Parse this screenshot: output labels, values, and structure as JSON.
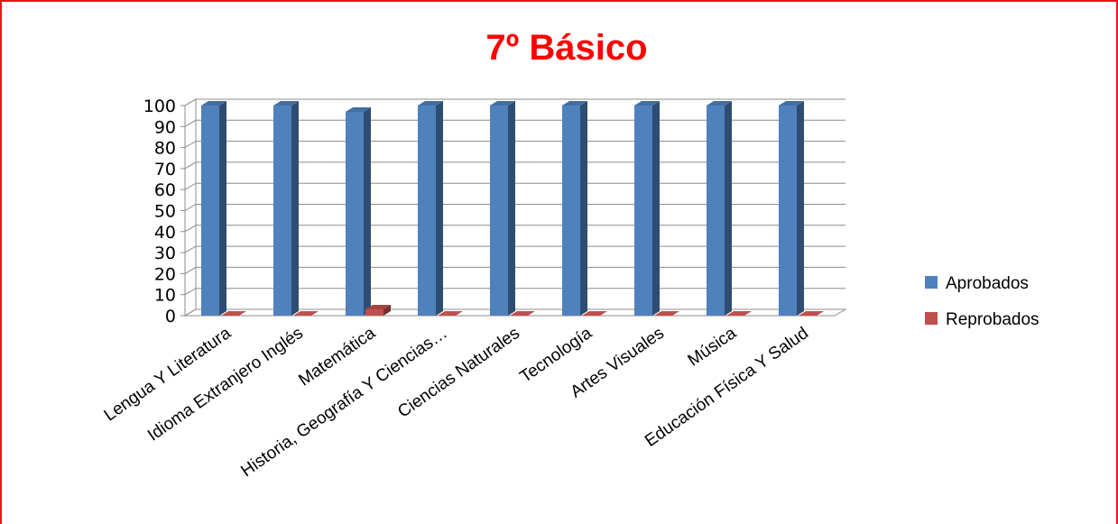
{
  "chart_data": {
    "type": "bar",
    "title": "7º Básico",
    "title_color": "#ff0000",
    "categories": [
      "Lengua Y Literatura",
      "Idioma Extranjero Inglés",
      "Matemática",
      "Historia, Geografía Y Ciencias…",
      "Ciencias Naturales",
      "Tecnología",
      "Artes Visuales",
      "Música",
      "Educación Física Y Salud"
    ],
    "series": [
      {
        "name": "Aprobados",
        "color": "#4f81bd",
        "values": [
          100,
          100,
          97,
          100,
          100,
          100,
          100,
          100,
          100
        ]
      },
      {
        "name": "Reprobados",
        "color": "#c0504d",
        "values": [
          0,
          0,
          3,
          0,
          0,
          0,
          0,
          0,
          0
        ]
      }
    ],
    "ylim": [
      0,
      100
    ],
    "yticks": [
      0,
      10,
      20,
      30,
      40,
      50,
      60,
      70,
      80,
      90,
      100
    ],
    "grid": true,
    "legend_position": "right",
    "xlabel": "",
    "ylabel": ""
  }
}
